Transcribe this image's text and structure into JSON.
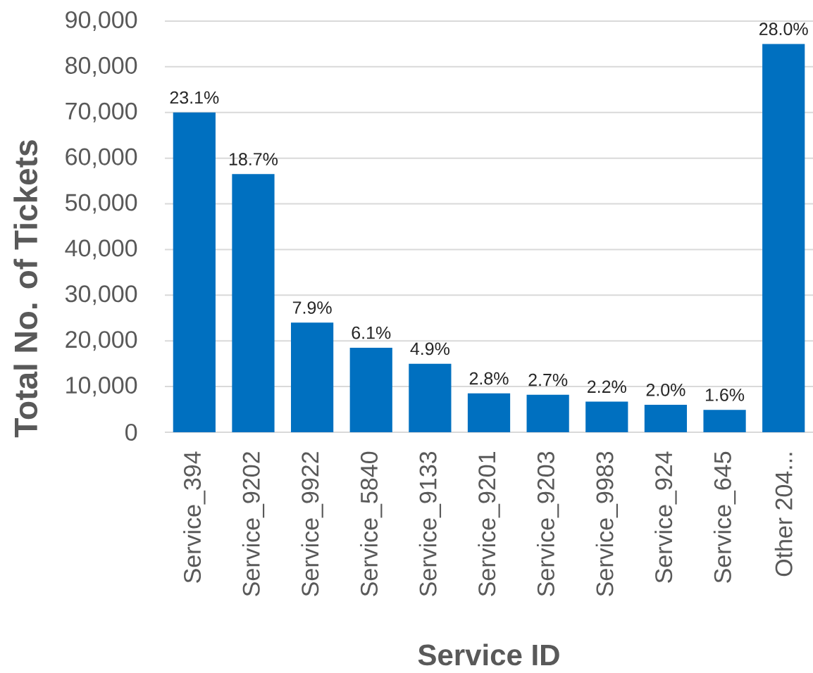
{
  "chart_data": {
    "type": "bar",
    "xlabel": "Service ID",
    "ylabel": "Total No. of Tickets",
    "categories": [
      "Service_394",
      "Service_9202",
      "Service_9922",
      "Service_5840",
      "Service_9133",
      "Service_9201",
      "Service_9203",
      "Service_9983",
      "Service_924",
      "Service_645",
      "Other 204..."
    ],
    "values": [
      70000,
      56500,
      24000,
      18500,
      15000,
      8500,
      8200,
      6700,
      6000,
      4900,
      85000
    ],
    "annotations": [
      {
        "text": "23.1%",
        "x": "Service_394",
        "y": 70000
      },
      {
        "text": "18.7%",
        "x": "Service_9202",
        "y": 56500
      },
      {
        "text": "7.9%",
        "x": "Service_9922",
        "y": 24000
      },
      {
        "text": "6.1%",
        "x": "Service_5840",
        "y": 18500
      },
      {
        "text": "4.9%",
        "x": "Service_9133",
        "y": 15000
      },
      {
        "text": "2.8%",
        "x": "Service_9201",
        "y": 8500
      },
      {
        "text": "2.7%",
        "x": "Service_9203",
        "y": 8200
      },
      {
        "text": "2.2%",
        "x": "Service_9983",
        "y": 6700
      },
      {
        "text": "2.0%",
        "x": "Service_924",
        "y": 6000
      },
      {
        "text": "1.6%",
        "x": "Service_645",
        "y": 4900
      },
      {
        "text": "28.0%",
        "x": "Other 204...",
        "y": 85000
      }
    ],
    "color": "#0070c0",
    "ylim": [
      0,
      90000
    ],
    "yticks": [
      0,
      {
        "value": 10000,
        "label": "10,000"
      },
      {
        "value": 20000,
        "label": "20,000"
      },
      {
        "value": 30000,
        "label": "30,000"
      },
      {
        "value": 40000,
        "label": "40,000"
      },
      {
        "value": 50000,
        "label": "50,000"
      },
      {
        "value": 60000,
        "label": "60,000"
      },
      {
        "value": 70000,
        "label": "70,000"
      },
      {
        "value": 80000,
        "label": "80,000"
      },
      {
        "value": 90000,
        "label": "90,000"
      }
    ],
    "grid": "y"
  }
}
